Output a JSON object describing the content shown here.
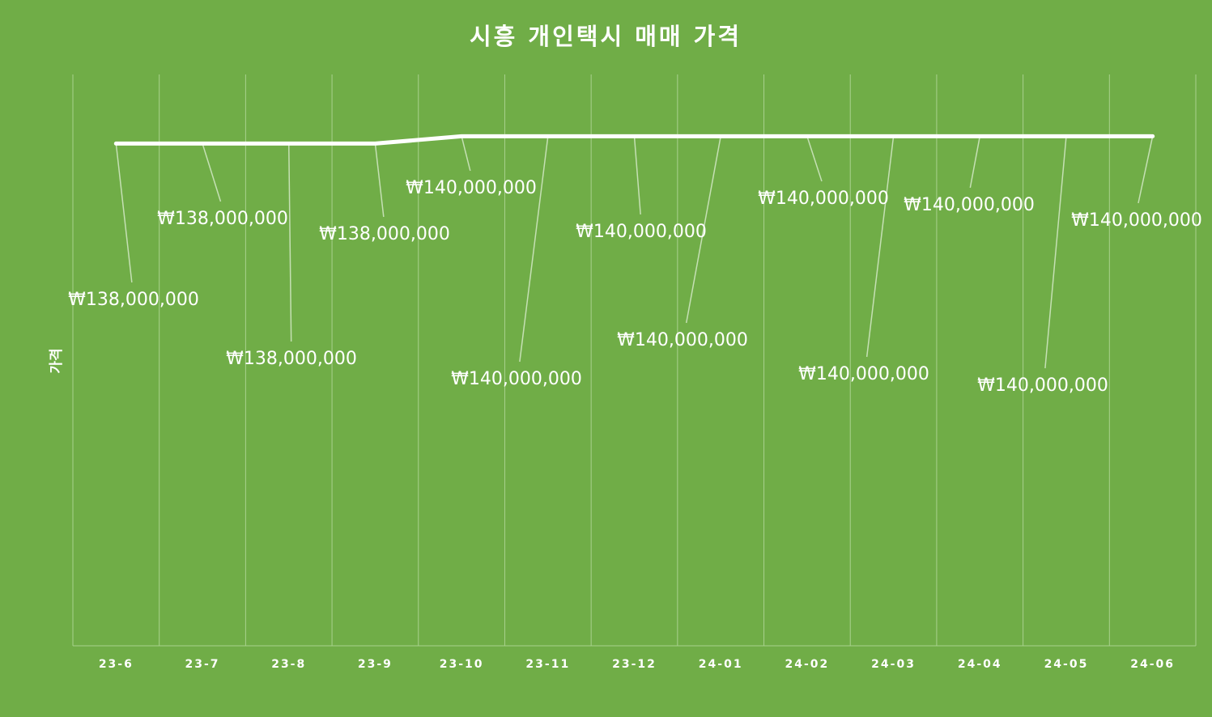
{
  "chart_data": {
    "type": "line",
    "title": "시흥 개인택시 매매 가격",
    "xlabel": "",
    "ylabel": "가격",
    "categories": [
      "23-6",
      "23-7",
      "23-8",
      "23-9",
      "23-10",
      "23-11",
      "23-12",
      "24-01",
      "24-02",
      "24-03",
      "24-04",
      "24-05",
      "24-06"
    ],
    "series": [
      {
        "values": [
          138000000,
          138000000,
          138000000,
          138000000,
          140000000,
          140000000,
          140000000,
          140000000,
          140000000,
          140000000,
          140000000,
          140000000,
          140000000
        ],
        "data_labels": [
          "₩138,000,000",
          "₩138,000,000",
          "₩138,000,000",
          "₩138,000,000",
          "₩140,000,000",
          "₩140,000,000",
          "₩140,000,000",
          "₩140,000,000",
          "₩140,000,000",
          "₩140,000,000",
          "₩140,000,000",
          "₩140,000,000",
          "₩140,000,000"
        ]
      }
    ],
    "ylim": [
      0,
      157000000
    ],
    "grid": "vertical",
    "legend": "none",
    "colors": {
      "background": "#70AD47",
      "line": "#FFFFFF",
      "gridline": "#A9D18E",
      "text": "#FFFFFF"
    }
  }
}
